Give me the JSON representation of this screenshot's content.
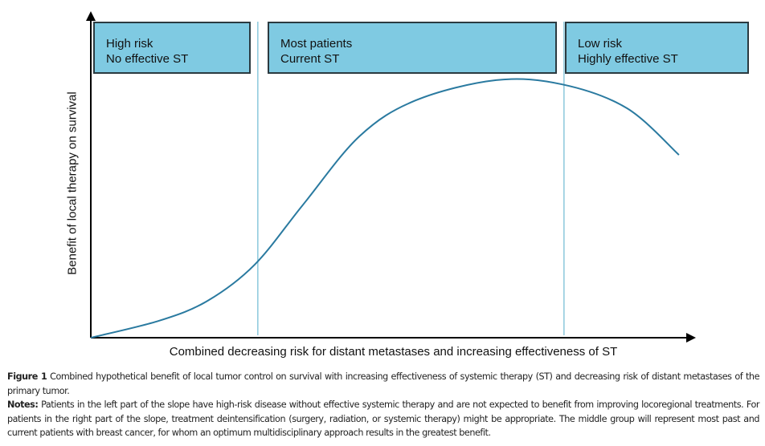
{
  "chart_data": {
    "type": "line",
    "title": "",
    "xlabel": "Combined decreasing risk for distant metastases and increasing effectiveness of ST",
    "ylabel": "Benefit of local therapy on survival",
    "xlim": [
      0,
      100
    ],
    "ylim": [
      0,
      100
    ],
    "grid": false,
    "series": [
      {
        "name": "benefit",
        "x": [
          0,
          11.3,
          19.3,
          27.1,
          35.1,
          44.4,
          53.7,
          67,
          77.9,
          88.6,
          97.2
        ],
        "y": [
          0,
          5.2,
          11.3,
          22.4,
          40.8,
          61.7,
          72.7,
          78.9,
          77.6,
          70.3,
          56
        ]
      }
    ],
    "dividers": [
      27.6,
      78.2
    ],
    "regions": [
      {
        "line1": "High risk",
        "line2": "No effective ST"
      },
      {
        "line1": "Most patients",
        "line2": "Current ST"
      },
      {
        "line1": "Low risk",
        "line2": "Highly effective ST"
      }
    ],
    "colors": {
      "box": "#7fcae2",
      "curve": "#2a7aa0",
      "divider": "#8cc8dc"
    }
  },
  "caption": {
    "figure_label": "Figure 1",
    "figure_text": "Combined hypothetical benefit of local tumor control on survival with increasing effectiveness of systemic therapy (ST) and decreasing risk of distant metastases of the primary tumor.",
    "notes_label": "Notes:",
    "notes_text": "Patients in the left part of the slope have high-risk disease without effective systemic therapy and are not expected to benefit from improving locoregional treatments. For patients in the right part of the slope, treatment deintensification (surgery, radiation, or systemic therapy) might be appropriate. The middle group will represent most past and current patients with breast cancer, for whom an optimum multidisciplinary approach results in the greatest benefit."
  }
}
